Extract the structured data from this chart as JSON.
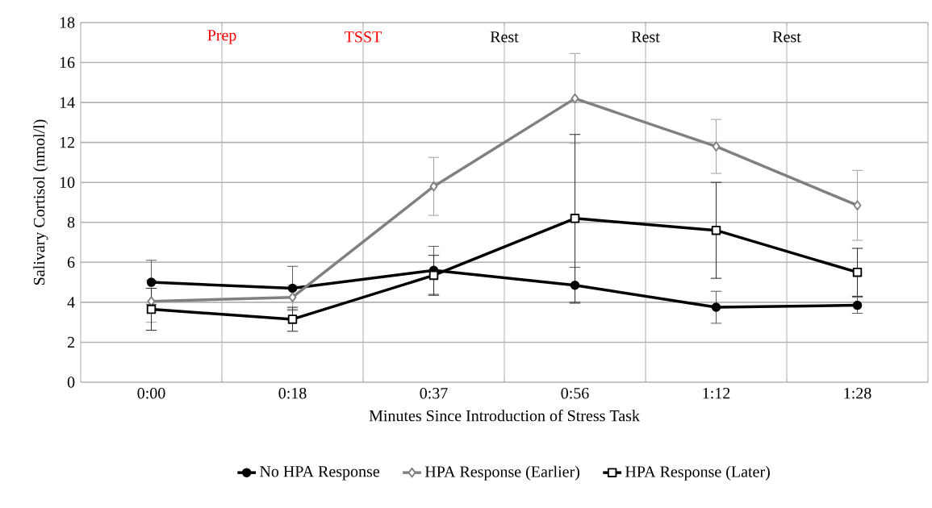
{
  "chart_data": {
    "type": "line",
    "xlabel": "Minutes Since Introduction of Stress Task",
    "ylabel": "Salivary Cortisol (nmol/l)",
    "categories": [
      "0:00",
      "0:18",
      "0:37",
      "0:56",
      "1:12",
      "1:28"
    ],
    "ylim": [
      0,
      18
    ],
    "yticks": [
      0,
      2,
      4,
      6,
      8,
      10,
      12,
      14,
      16,
      18
    ],
    "grid": true,
    "legend": "bottom",
    "annotations": [
      "Prep",
      "TSST",
      "Rest",
      "Rest",
      "Rest"
    ],
    "series": [
      {
        "name": "No HPA Response",
        "color": "#000000",
        "marker": "circle",
        "values": [
          5.0,
          4.7,
          5.6,
          4.85,
          3.75,
          3.85
        ],
        "errors": [
          1.1,
          1.1,
          1.2,
          0.9,
          0.8,
          0.4
        ]
      },
      {
        "name": "HPA Response (Earlier)",
        "color": "#808080",
        "marker": "diamond",
        "values": [
          4.05,
          4.25,
          9.8,
          14.2,
          11.8,
          8.85
        ],
        "errors": [
          1.05,
          0.6,
          1.45,
          2.25,
          1.35,
          1.75
        ]
      },
      {
        "name": "HPA Response (Later)",
        "color": "#000000",
        "marker": "square",
        "values": [
          3.65,
          3.15,
          5.35,
          8.2,
          7.6,
          5.5
        ],
        "errors": [
          1.05,
          0.6,
          1.0,
          4.2,
          2.4,
          1.2
        ]
      }
    ]
  }
}
